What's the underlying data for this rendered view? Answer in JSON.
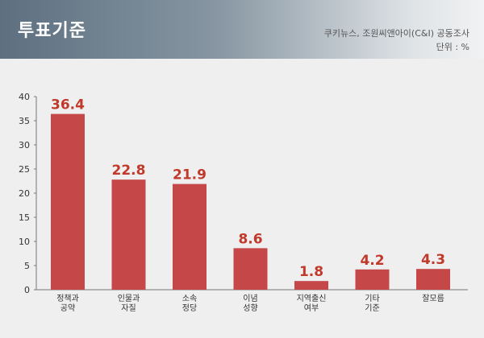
{
  "header": {
    "title": "투표기준",
    "source": "쿠키뉴스, 조원씨앤아이(C&I) 공동조사",
    "unit": "단위 : %"
  },
  "chart_data": {
    "type": "bar",
    "categories": [
      [
        "정책과",
        "공약"
      ],
      [
        "인물과",
        "자질"
      ],
      [
        "소속",
        "정당"
      ],
      [
        "이념",
        "성향"
      ],
      [
        "지역출신",
        "여부"
      ],
      [
        "기타",
        "기준"
      ],
      [
        "잘모름"
      ]
    ],
    "values": [
      36.4,
      22.8,
      21.9,
      8.6,
      1.8,
      4.2,
      4.3
    ],
    "value_labels": [
      "36.4",
      "22.8",
      "21.9",
      "8.6",
      "1.8",
      "4.2",
      "4.3"
    ],
    "yticks": [
      "0",
      "5",
      "10",
      "15",
      "20",
      "25",
      "30",
      "35",
      "40"
    ],
    "ylim": [
      0,
      40
    ],
    "bar_color": "#c64747",
    "label_color": "#c0392b",
    "grid": false
  }
}
